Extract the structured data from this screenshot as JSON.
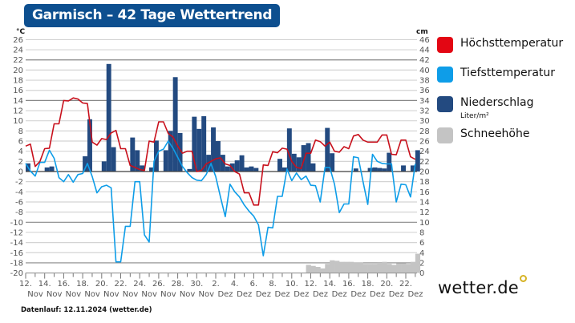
{
  "title": "Garmisch – 42 Tage Wettertrend",
  "footer": "Datenlauf: 12.11.2024 (wetter.de)",
  "logo": "wetter.de",
  "legend": [
    {
      "label": "Höchsttemperatur",
      "color": "#e30613"
    },
    {
      "label": "Tiefsttemperatur",
      "color": "#0e9de8"
    },
    {
      "label": "Niederschlag",
      "sub": "Liter/m²",
      "color": "#234a80"
    },
    {
      "label": "Schneehöhe",
      "color": "#c4c4c4"
    }
  ],
  "chart_data": {
    "type": "line",
    "title": "Garmisch – 42 Tage Wettertrend",
    "ylabel_left": "°C",
    "ylabel_right": "cm",
    "ylim_left": [
      -20,
      26
    ],
    "ylim_right": [
      0,
      46
    ],
    "yticks_left": [
      26,
      24,
      22,
      20,
      18,
      16,
      14,
      12,
      10,
      8,
      6,
      4,
      2,
      0,
      -2,
      -4,
      -6,
      -8,
      -10,
      -12,
      -14,
      -16,
      -18,
      -20
    ],
    "yticks_right": [
      46,
      44,
      42,
      40,
      38,
      36,
      34,
      32,
      30,
      28,
      26,
      24,
      22,
      20,
      18,
      16,
      14,
      12,
      10,
      8,
      6,
      4,
      2,
      0
    ],
    "x_day_range": [
      0,
      41
    ],
    "x_step_days": 0.5,
    "xtick_labels": [
      [
        "12.",
        "Nov"
      ],
      [
        "14.",
        "Nov"
      ],
      [
        "16.",
        "Nov"
      ],
      [
        "18.",
        "Nov"
      ],
      [
        "20.",
        "Nov"
      ],
      [
        "22.",
        "Nov"
      ],
      [
        "24.",
        "Nov"
      ],
      [
        "26.",
        "Nov"
      ],
      [
        "28.",
        "Nov"
      ],
      [
        "30.",
        "Nov"
      ],
      [
        "2.",
        "Dez"
      ],
      [
        "4.",
        "Dez"
      ],
      [
        "6.",
        "Dez"
      ],
      [
        "8.",
        "Dez"
      ],
      [
        "10.",
        "Dez"
      ],
      [
        "12.",
        "Dez"
      ],
      [
        "14.",
        "Dez"
      ],
      [
        "16.",
        "Dez"
      ],
      [
        "18.",
        "Dez"
      ],
      [
        "20.",
        "Dez"
      ],
      [
        "22.",
        "Dez"
      ]
    ],
    "series": [
      {
        "name": "Höchsttemperatur",
        "unit": "°C",
        "values": [
          5.0,
          5.4,
          1.0,
          2.0,
          4.5,
          4.6,
          9.4,
          9.4,
          14.0,
          13.9,
          14.5,
          14.3,
          13.5,
          13.4,
          5.8,
          5.2,
          6.5,
          6.3,
          7.6,
          8.1,
          4.5,
          4.5,
          1.2,
          0.8,
          0.4,
          0.2,
          6.0,
          5.8,
          9.8,
          9.8,
          7.5,
          6.8,
          5.0,
          3.6,
          4.0,
          4.0,
          0.0,
          0.2,
          1.5,
          2.0,
          2.5,
          2.7,
          1.5,
          1.2,
          0.0,
          -0.5,
          -4.2,
          -4.2,
          -6.6,
          -6.6,
          1.3,
          1.2,
          3.9,
          3.7,
          4.6,
          4.4,
          2.0,
          0.8,
          0.6,
          3.6,
          3.6,
          6.2,
          5.9,
          5.0,
          5.8,
          4.0,
          3.8,
          4.9,
          4.5,
          7.0,
          7.3,
          6.2,
          5.8,
          5.8,
          5.8,
          7.2,
          7.2,
          3.4,
          3.3,
          6.2,
          6.2,
          2.9,
          2.4
        ]
      },
      {
        "name": "Tiefsttemperatur",
        "unit": "°C",
        "values": [
          1.6,
          0.1,
          -0.9,
          1.8,
          1.8,
          4.2,
          2.6,
          -1.2,
          -2.0,
          -0.6,
          -2.1,
          -0.6,
          -0.4,
          1.6,
          -1.0,
          -4.2,
          -3.0,
          -2.7,
          -3.2,
          -17.8,
          -17.8,
          -10.8,
          -10.8,
          -2.0,
          -2.0,
          -12.5,
          -13.9,
          2.0,
          4.0,
          4.4,
          6.0,
          4.6,
          2.8,
          1.0,
          -0.2,
          -1.2,
          -1.7,
          -1.8,
          -0.6,
          1.6,
          -1.0,
          -5.0,
          -8.9,
          -2.5,
          -4.0,
          -5.0,
          -6.6,
          -7.8,
          -8.8,
          -10.5,
          -16.6,
          -11.0,
          -11.1,
          -4.9,
          -4.9,
          0.5,
          -1.8,
          -0.3,
          -1.6,
          -0.9,
          -2.7,
          -2.8,
          -6.0,
          0.8,
          0.8,
          -2.5,
          -8.1,
          -6.4,
          -6.4,
          2.9,
          2.7,
          -2.0,
          -6.5,
          3.4,
          2.0,
          1.6,
          1.5,
          1.5,
          -6.0,
          -2.5,
          -2.6,
          -5.0,
          1.5
        ]
      },
      {
        "name": "Niederschlag",
        "unit": "Liter/m²",
        "points": [
          [
            0,
            1.6
          ],
          [
            2,
            0.8
          ],
          [
            2.5,
            1.0
          ],
          [
            6,
            3.0
          ],
          [
            6.5,
            10.3
          ],
          [
            8,
            2.0
          ],
          [
            8.5,
            21.2
          ],
          [
            9,
            4.8
          ],
          [
            11,
            6.7
          ],
          [
            11.5,
            4.2
          ],
          [
            12,
            1.2
          ],
          [
            13,
            0.8
          ],
          [
            13.5,
            6.1
          ],
          [
            14.5,
            4.2
          ],
          [
            15,
            8.0
          ],
          [
            15.5,
            18.6
          ],
          [
            16,
            7.6
          ],
          [
            17,
            0.5
          ],
          [
            17.5,
            10.8
          ],
          [
            18,
            8.4
          ],
          [
            18.5,
            10.9
          ],
          [
            19,
            3.3
          ],
          [
            19.5,
            8.7
          ],
          [
            20,
            6.0
          ],
          [
            20.5,
            3.3
          ],
          [
            21,
            1.0
          ],
          [
            21.5,
            1.6
          ],
          [
            22,
            2.2
          ],
          [
            22.5,
            3.2
          ],
          [
            23,
            0.8
          ],
          [
            23.5,
            1.0
          ],
          [
            24,
            0.7
          ],
          [
            26.5,
            2.5
          ],
          [
            27,
            0.8
          ],
          [
            27.5,
            8.5
          ],
          [
            28,
            3.5
          ],
          [
            28.5,
            2.8
          ],
          [
            29,
            5.2
          ],
          [
            29.5,
            5.6
          ],
          [
            30,
            1.6
          ],
          [
            31.5,
            8.6
          ],
          [
            32,
            3.6
          ],
          [
            34.5,
            0.6
          ],
          [
            36,
            0.7
          ],
          [
            36.5,
            0.8
          ],
          [
            37,
            0.7
          ],
          [
            37.5,
            0.6
          ],
          [
            38,
            3.7
          ],
          [
            39.5,
            1.2
          ],
          [
            40.5,
            1.2
          ],
          [
            41,
            4.2
          ]
        ]
      },
      {
        "name": "Schneehöhe",
        "unit": "cm",
        "points": [
          [
            29.5,
            1.6
          ],
          [
            30,
            1.4
          ],
          [
            30.5,
            1.2
          ],
          [
            31,
            0.9
          ],
          [
            31.5,
            1.8
          ],
          [
            32,
            2.5
          ],
          [
            32.5,
            2.4
          ],
          [
            33,
            2.2
          ],
          [
            33.5,
            2.2
          ],
          [
            34,
            2.2
          ],
          [
            34.5,
            2.1
          ],
          [
            35,
            2.1
          ],
          [
            35.5,
            1.8
          ],
          [
            36,
            1.8
          ],
          [
            36.5,
            1.8
          ],
          [
            37,
            2.0
          ],
          [
            37.5,
            2.2
          ],
          [
            38,
            1.8
          ],
          [
            38.5,
            1.6
          ],
          [
            39,
            1.9
          ],
          [
            39.5,
            1.9
          ],
          [
            40,
            1.8
          ],
          [
            40.5,
            2.2
          ],
          [
            41,
            3.8
          ]
        ]
      }
    ]
  }
}
